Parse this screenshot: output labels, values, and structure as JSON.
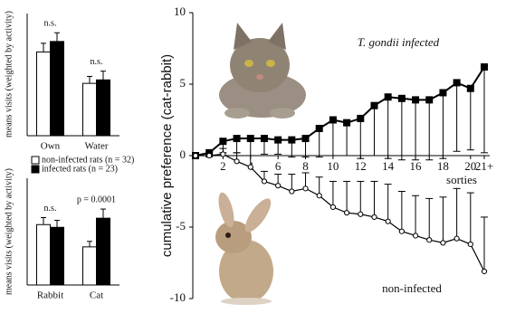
{
  "chart_data": [
    {
      "type": "bar",
      "y_label": "means visits (weighted by activity)",
      "categories": [
        "Own",
        "Water"
      ],
      "series": [
        {
          "color": "#ffffff",
          "values": [
            24,
            15
          ],
          "errors": [
            2.5,
            2
          ]
        },
        {
          "color": "#000000",
          "values": [
            27,
            16
          ],
          "errors": [
            2.5,
            2.5
          ]
        }
      ],
      "annotations": [
        "n.s.",
        "n.s."
      ],
      "ylim": [
        0,
        35
      ]
    },
    {
      "type": "bar",
      "y_label": "means visits (weighted by activity)",
      "categories": [
        "Rabbit",
        "Cat"
      ],
      "series": [
        {
          "name": "non-infected rats (n = 32)",
          "color": "#ffffff",
          "values": [
            19.8,
            12.5
          ],
          "errors": [
            2.3,
            1.8
          ]
        },
        {
          "name": "infected rats (n = 23)",
          "color": "#000000",
          "values": [
            18.9,
            21.9
          ],
          "errors": [
            2.3,
            3
          ]
        }
      ],
      "annotations": [
        "n.s.",
        "p = 0.0001"
      ],
      "ylim": [
        0,
        35
      ]
    },
    {
      "type": "line",
      "y_label": "cumulative preference (cat-rabbit)",
      "x_label": "sorties",
      "x": [
        0,
        1,
        2,
        3,
        4,
        5,
        6,
        7,
        8,
        9,
        10,
        11,
        12,
        13,
        14,
        15,
        16,
        17,
        18,
        19,
        20,
        21
      ],
      "series": [
        {
          "name": "T. gondii infected",
          "color": "#000000",
          "marker": "square",
          "error_side": "down",
          "values": [
            0,
            0.2,
            1.0,
            1.2,
            1.2,
            1.2,
            1.1,
            1.1,
            1.2,
            1.9,
            2.5,
            2.3,
            2.6,
            3.5,
            4.1,
            4.0,
            3.9,
            3.9,
            4.4,
            5.1,
            4.7,
            6.2
          ],
          "errors": [
            0,
            0.3,
            0.8,
            1.0,
            1.2,
            1.1,
            1.0,
            1.2,
            1.3,
            2.0,
            2.5,
            2.3,
            2.8,
            3.5,
            4.3,
            4.3,
            4.2,
            4.2,
            4.6,
            4.8,
            4.3,
            6.0
          ]
        },
        {
          "name": "non-infected",
          "color": "#000000",
          "marker": "circle",
          "error_side": "up",
          "values": [
            0,
            0,
            0.1,
            -0.4,
            -0.8,
            -1.8,
            -2.1,
            -2.5,
            -2.3,
            -2.8,
            -3.6,
            -4.0,
            -4.1,
            -4.3,
            -4.6,
            -5.3,
            -5.6,
            -5.9,
            -6.1,
            -5.8,
            -6.2,
            -8.1
          ],
          "errors": [
            0,
            0.3,
            0.4,
            0.6,
            0.8,
            0.7,
            0.8,
            1.2,
            1.1,
            1.3,
            1.8,
            2.2,
            2.3,
            2.5,
            2.6,
            2.8,
            2.8,
            2.9,
            3.2,
            3.5,
            3.6,
            3.8
          ]
        }
      ],
      "xlim": [
        0,
        21
      ],
      "xticks": [
        2,
        4,
        6,
        8,
        10,
        12,
        14,
        16,
        18,
        20,
        {
          "value": 21,
          "label": "21+"
        }
      ],
      "ylim": [
        -10,
        10
      ],
      "yticks": [
        -10,
        -5,
        0,
        5,
        10
      ]
    }
  ]
}
